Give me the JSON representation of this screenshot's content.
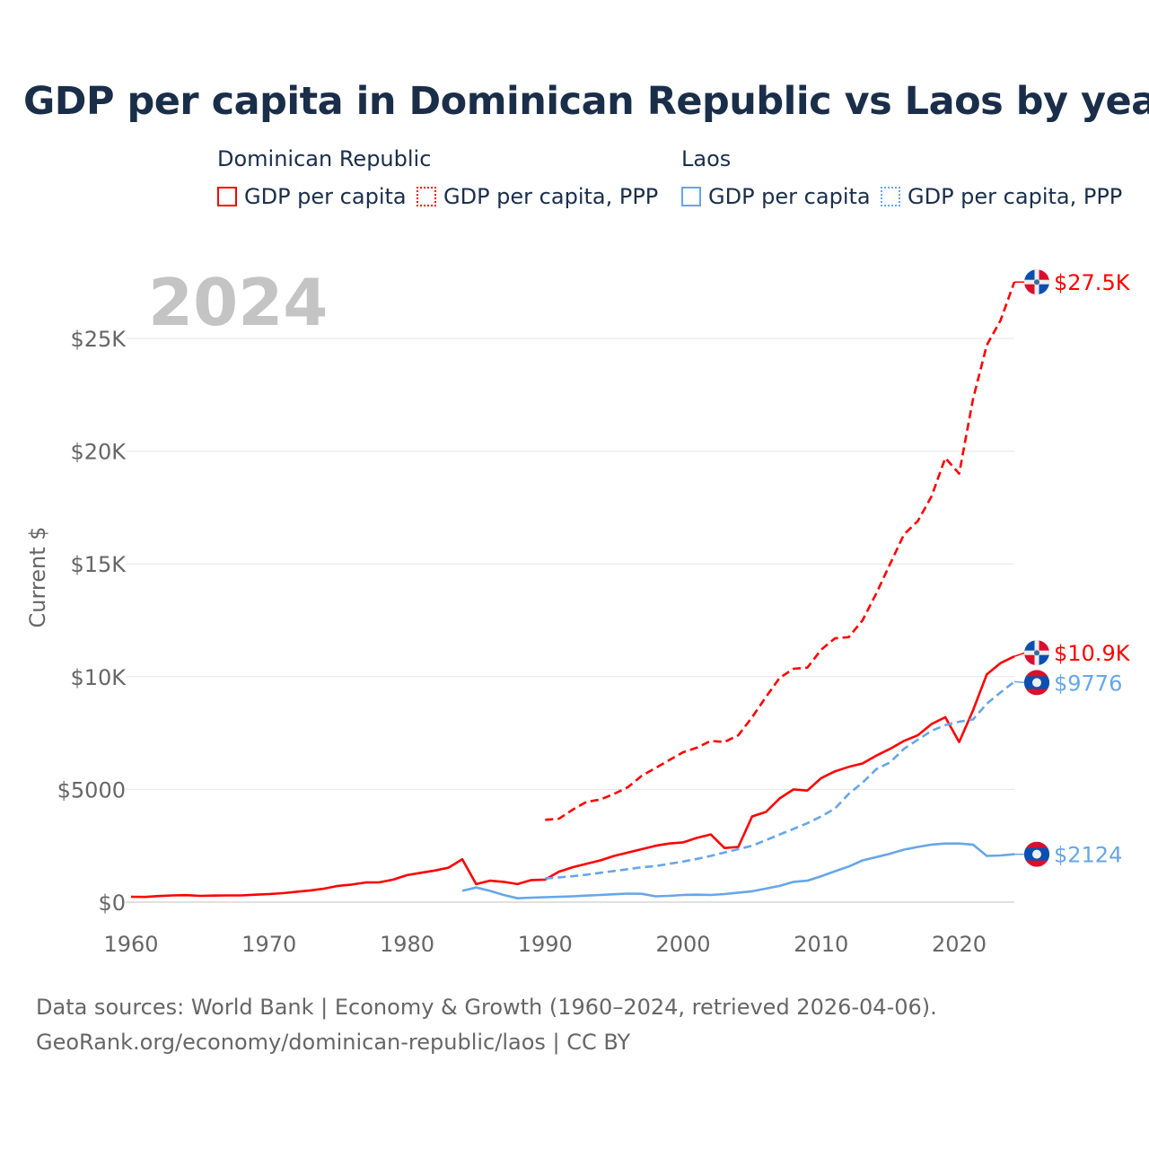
{
  "title": "GDP per capita in Dominican Republic vs Laos by year",
  "legend": {
    "groups": [
      {
        "name": "Dominican Republic",
        "items": [
          "GDP per capita",
          "GDP per capita, PPP"
        ]
      },
      {
        "name": "Laos",
        "items": [
          "GDP per capita",
          "GDP per capita, PPP"
        ]
      }
    ]
  },
  "year_label": "2024",
  "footer": {
    "line1": "Data sources: World Bank | Economy & Growth (1960–2024, retrieved 2026-04-06).",
    "line2": "GeoRank.org/economy/dominican-republic/laos | CC BY"
  },
  "colors": {
    "dr": "#ff0000",
    "laos": "#66a6e8",
    "grid": "#e6e6e6",
    "axis_text": "#666666",
    "year": "#c4c4c4"
  },
  "chart_data": {
    "type": "line",
    "title": "GDP per capita in Dominican Republic vs Laos by year",
    "xlabel": "",
    "ylabel": "Current $",
    "xlim": [
      1960,
      2024
    ],
    "ylim": [
      0,
      27500
    ],
    "x_ticks": [
      1960,
      1970,
      1980,
      1990,
      2000,
      2010,
      2020
    ],
    "x_tick_labels": [
      "1960",
      "1970",
      "1980",
      "1990",
      "2000",
      "2010",
      "2020"
    ],
    "y_ticks": [
      0,
      5000,
      10000,
      15000,
      20000,
      25000
    ],
    "y_tick_labels": [
      "$0",
      "$5000",
      "$10K",
      "$15K",
      "$20K",
      "$25K"
    ],
    "grid": true,
    "legend_position": "top",
    "series": [
      {
        "name": "Dominican Republic GDP per capita",
        "country": "dr",
        "dashed": false,
        "start": 1960,
        "end_label": "$10.9K",
        "values": [
          240,
          230,
          270,
          300,
          310,
          280,
          290,
          300,
          300,
          330,
          360,
          400,
          460,
          520,
          600,
          720,
          780,
          870,
          880,
          1000,
          1200,
          1300,
          1400,
          1530,
          1900,
          800,
          950,
          900,
          800,
          980,
          1000,
          1350,
          1550,
          1700,
          1850,
          2050,
          2200,
          2350,
          2500,
          2600,
          2650,
          2850,
          3000,
          2400,
          2450,
          3800,
          4000,
          4600,
          5000,
          4950,
          5500,
          5800,
          6000,
          6150,
          6500,
          6800,
          7150,
          7400,
          7900,
          8200,
          7100,
          8500,
          10100,
          10600,
          10900
        ]
      },
      {
        "name": "Dominican Republic GDP per capita, PPP",
        "country": "dr",
        "dashed": true,
        "start": 1990,
        "end_label": "$27.5K",
        "values": [
          3650,
          3700,
          4100,
          4450,
          4550,
          4800,
          5100,
          5600,
          5950,
          6300,
          6650,
          6850,
          7150,
          7100,
          7400,
          8200,
          9100,
          9950,
          10350,
          10400,
          11200,
          11700,
          11750,
          12500,
          13700,
          15000,
          16300,
          16900,
          18000,
          19700,
          19000,
          22300,
          24700,
          25800,
          27500
        ]
      },
      {
        "name": "Laos GDP per capita",
        "country": "laos",
        "dashed": false,
        "start": 1984,
        "end_label": "$2124",
        "values": [
          500,
          650,
          500,
          320,
          170,
          200,
          220,
          240,
          260,
          290,
          320,
          350,
          380,
          370,
          260,
          280,
          320,
          330,
          320,
          360,
          420,
          480,
          600,
          720,
          900,
          950,
          1150,
          1370,
          1580,
          1850,
          2000,
          2150,
          2330,
          2450,
          2550,
          2600,
          2600,
          2550,
          2050,
          2070,
          2124
        ]
      },
      {
        "name": "Laos GDP per capita, PPP",
        "country": "laos",
        "dashed": true,
        "start": 1990,
        "end_label": "$9776",
        "values": [
          1050,
          1100,
          1150,
          1220,
          1300,
          1380,
          1460,
          1550,
          1600,
          1700,
          1800,
          1920,
          2050,
          2200,
          2350,
          2500,
          2750,
          3000,
          3250,
          3500,
          3800,
          4150,
          4800,
          5300,
          5900,
          6200,
          6800,
          7200,
          7600,
          7850,
          8000,
          8100,
          8800,
          9300,
          9776
        ]
      }
    ]
  }
}
